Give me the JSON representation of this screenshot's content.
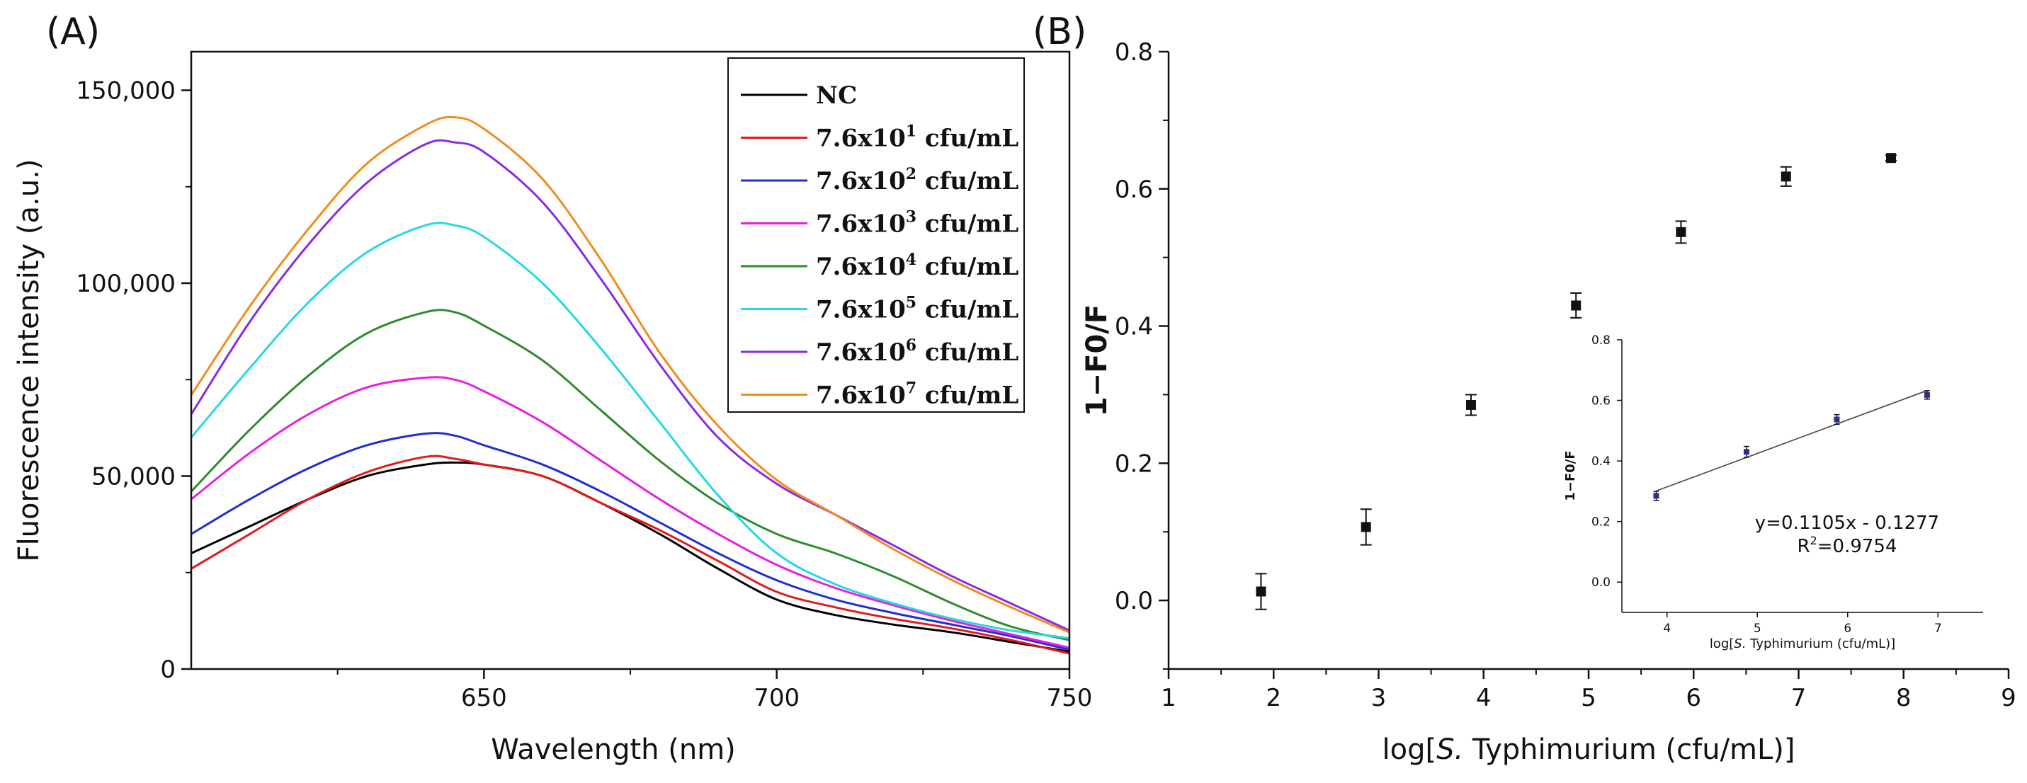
{
  "chart_data": [
    {
      "panel": "(A)",
      "type": "line",
      "xlabel": "Wavelength (nm)",
      "ylabel": "Fluorescence intensity (a.u.)",
      "xlim": [
        600,
        750
      ],
      "ylim": [
        0,
        160000
      ],
      "xticks": [
        650,
        700,
        750
      ],
      "yticks": [
        0,
        50000,
        100000,
        150000
      ],
      "xtick_labels": [
        "650",
        "700",
        "750"
      ],
      "ytick_labels": [
        "0",
        "50,000",
        "100,000",
        "150,000"
      ],
      "legend_position": "top-right",
      "x": [
        600,
        610,
        620,
        630,
        640,
        645,
        650,
        660,
        670,
        680,
        690,
        700,
        710,
        720,
        730,
        740,
        750
      ],
      "series": [
        {
          "name": "NC",
          "base": "",
          "sup": "",
          "unit": "",
          "color": "#000000",
          "values": [
            30000,
            37000,
            44000,
            50000,
            53000,
            53500,
            53000,
            50000,
            43000,
            35000,
            26000,
            18000,
            14000,
            11500,
            9500,
            7000,
            4500
          ]
        },
        {
          "name": "7.6x10",
          "base": "7.6x10",
          "sup": "1",
          "unit": " cfu/mL",
          "color": "#e31a1c",
          "values": [
            26000,
            35000,
            44000,
            51000,
            55000,
            54500,
            53000,
            50000,
            43000,
            36000,
            28000,
            20000,
            16000,
            13000,
            10500,
            7500,
            4000
          ]
        },
        {
          "name": "7.6x10",
          "base": "7.6x10",
          "sup": "2",
          "unit": " cfu/mL",
          "color": "#1f2fd0",
          "values": [
            35000,
            44000,
            52000,
            58000,
            61000,
            60500,
            58000,
            53000,
            46000,
            38000,
            30000,
            23000,
            18000,
            14500,
            11500,
            8500,
            5000
          ]
        },
        {
          "name": "7.6x10",
          "base": "7.6x10",
          "sup": "3",
          "unit": " cfu/mL",
          "color": "#e81ee0",
          "values": [
            44000,
            56000,
            66000,
            73000,
            75500,
            75000,
            72000,
            64000,
            54000,
            44000,
            35000,
            27000,
            21000,
            16500,
            12500,
            9000,
            5500
          ]
        },
        {
          "name": "7.6x10",
          "base": "7.6x10",
          "sup": "4",
          "unit": " cfu/mL",
          "color": "#2e8b2e",
          "values": [
            46000,
            62000,
            76000,
            87000,
            92500,
            92500,
            89000,
            80000,
            67000,
            54000,
            43000,
            35000,
            30000,
            24000,
            17000,
            11000,
            7500
          ]
        },
        {
          "name": "7.6x10",
          "base": "7.6x10",
          "sup": "5",
          "unit": " cfu/mL",
          "color": "#26d8e6",
          "values": [
            60000,
            78000,
            95000,
            108000,
            115000,
            115000,
            112000,
            100000,
            83000,
            64000,
            45000,
            30000,
            22000,
            17000,
            13000,
            10000,
            8000
          ]
        },
        {
          "name": "7.6x10",
          "base": "7.6x10",
          "sup": "6",
          "unit": " cfu/mL",
          "color": "#8a2be2",
          "values": [
            66000,
            90000,
            110000,
            126000,
            136000,
            136500,
            134000,
            121000,
            101000,
            79000,
            60000,
            48000,
            40000,
            32000,
            24000,
            17000,
            10000
          ]
        },
        {
          "name": "7.6x10",
          "base": "7.6x10",
          "sup": "7",
          "unit": " cfu/mL",
          "color": "#f28b1e",
          "values": [
            71000,
            94000,
            114000,
            131000,
            141000,
            143000,
            140000,
            127000,
            106000,
            82000,
            63000,
            49000,
            40000,
            31000,
            23000,
            16000,
            9500
          ]
        }
      ]
    },
    {
      "panel": "(B)",
      "type": "scatter",
      "xlabel_prefix": "log[",
      "xlabel_italic": "S.",
      "xlabel_suffix": " Typhimurium (cfu/mL)]",
      "ylabel": "1−F0/F",
      "xlim": [
        1,
        9
      ],
      "ylim": [
        -0.1,
        0.8
      ],
      "xticks": [
        1,
        2,
        3,
        4,
        5,
        6,
        7,
        8,
        9
      ],
      "yticks": [
        0.0,
        0.2,
        0.4,
        0.6,
        0.8
      ],
      "xtick_labels": [
        "1",
        "2",
        "3",
        "4",
        "5",
        "6",
        "7",
        "8",
        "9"
      ],
      "ytick_labels": [
        "0.0",
        "0.2",
        "0.4",
        "0.6",
        "0.8"
      ],
      "x": [
        1.88,
        2.88,
        3.88,
        4.88,
        5.88,
        6.88,
        7.88
      ],
      "y": [
        0.013,
        0.107,
        0.285,
        0.43,
        0.537,
        0.618,
        0.645
      ],
      "error": [
        0.026,
        0.026,
        0.015,
        0.018,
        0.016,
        0.014,
        0.004
      ],
      "inset": {
        "type": "scatter",
        "xlabel_prefix": "log[",
        "xlabel_italic": "S.",
        "xlabel_suffix": " Typhimurium (cfu/mL)]",
        "ylabel": "1−F0/F",
        "xlim": [
          3.5,
          7.5
        ],
        "ylim": [
          -0.1,
          0.8
        ],
        "xticks": [
          4,
          5,
          6,
          7
        ],
        "yticks": [
          0.0,
          0.2,
          0.4,
          0.6,
          0.8
        ],
        "xtick_labels": [
          "4",
          "5",
          "6",
          "7"
        ],
        "ytick_labels": [
          "0.0",
          "0.2",
          "0.4",
          "0.6",
          "0.8"
        ],
        "x": [
          3.88,
          4.88,
          5.88,
          6.88
        ],
        "y": [
          0.285,
          0.43,
          0.537,
          0.618
        ],
        "error": [
          0.015,
          0.018,
          0.016,
          0.014
        ],
        "fit": {
          "slope": 0.1105,
          "intercept": -0.1277
        },
        "equation": "y=0.1105x - 0.1277",
        "r2_prefix": "R",
        "r2_sup": "2",
        "r2_value": "=0.9754"
      }
    }
  ]
}
